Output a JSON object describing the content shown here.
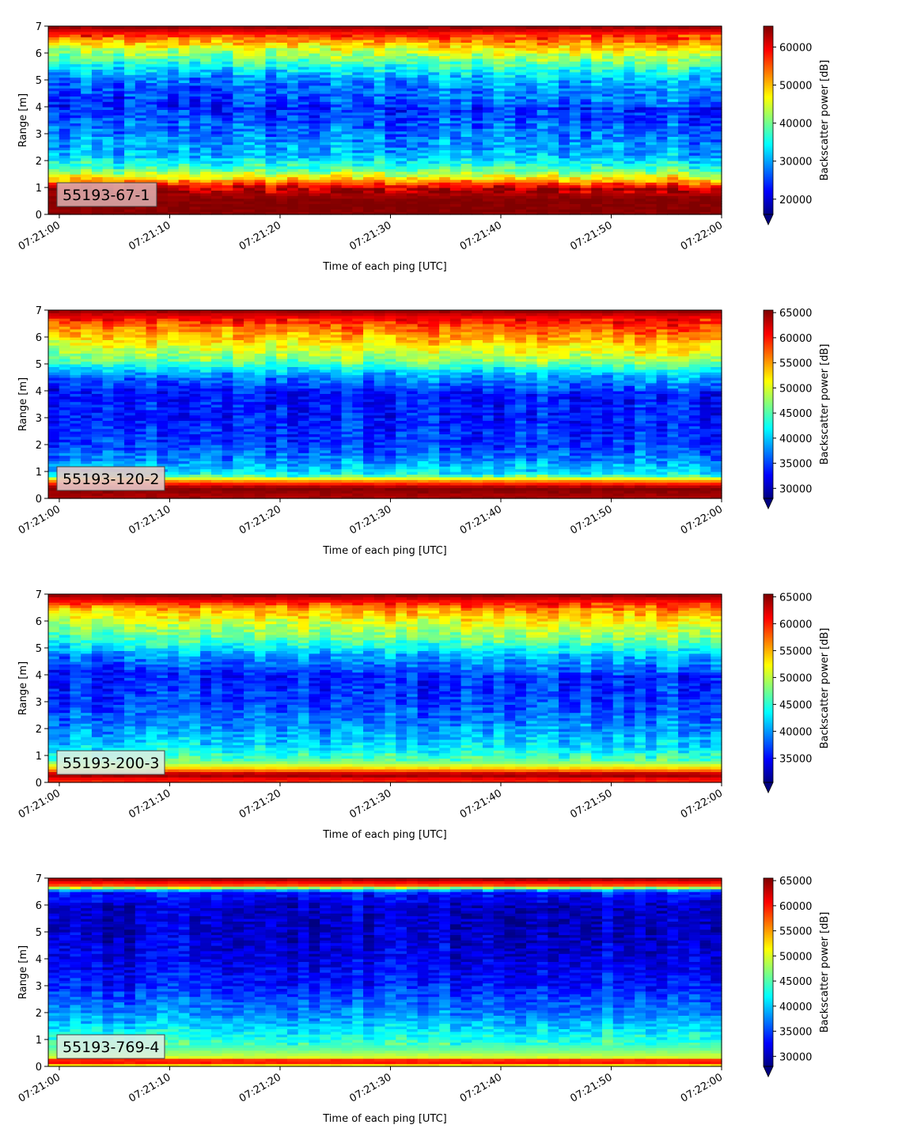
{
  "chart_data": [
    {
      "type": "heatmap",
      "label": "55193-67-1",
      "xlabel": "Time of each ping [UTC]",
      "ylabel": "Range [m]",
      "colorbar_label": "Backscatter power [dB]",
      "colormap": "jet",
      "x_ticks": [
        "07:21:00",
        "07:21:10",
        "07:21:20",
        "07:21:30",
        "07:21:40",
        "07:21:50",
        "07:22:00"
      ],
      "x_range": [
        "07:20:59",
        "07:22:00"
      ],
      "y_ticks": [
        0,
        1,
        2,
        3,
        4,
        5,
        6,
        7
      ],
      "ylim": [
        0,
        7
      ],
      "clim": [
        16000,
        65500
      ],
      "colorbar_ticks": [
        20000,
        30000,
        40000,
        50000,
        60000
      ],
      "profile": [
        {
          "range": 0.1,
          "value": 65000
        },
        {
          "range": 0.5,
          "value": 65500
        },
        {
          "range": 1.0,
          "value": 62000
        },
        {
          "range": 1.3,
          "value": 50000
        },
        {
          "range": 1.7,
          "value": 38000
        },
        {
          "range": 2.2,
          "value": 31000
        },
        {
          "range": 3.0,
          "value": 28000
        },
        {
          "range": 4.0,
          "value": 24000
        },
        {
          "range": 5.0,
          "value": 28000
        },
        {
          "range": 5.6,
          "value": 36000
        },
        {
          "range": 6.1,
          "value": 44000
        },
        {
          "range": 6.5,
          "value": 52000
        },
        {
          "range": 6.8,
          "value": 60000
        },
        {
          "range": 7.0,
          "value": 65000
        }
      ],
      "trend": 6000,
      "noise": 7000
    },
    {
      "type": "heatmap",
      "label": "55193-120-2",
      "xlabel": "Time of each ping [UTC]",
      "ylabel": "Range [m]",
      "colorbar_label": "Backscatter power [dB]",
      "colormap": "jet",
      "x_ticks": [
        "07:21:00",
        "07:21:10",
        "07:21:20",
        "07:21:30",
        "07:21:40",
        "07:21:50",
        "07:22:00"
      ],
      "x_range": [
        "07:20:59",
        "07:22:00"
      ],
      "y_ticks": [
        0,
        1,
        2,
        3,
        4,
        5,
        6,
        7
      ],
      "ylim": [
        0,
        7
      ],
      "clim": [
        28000,
        65500
      ],
      "colorbar_ticks": [
        30000,
        35000,
        40000,
        45000,
        50000,
        55000,
        60000,
        65000
      ],
      "profile": [
        {
          "range": 0.1,
          "value": 64000
        },
        {
          "range": 0.4,
          "value": 65500
        },
        {
          "range": 0.65,
          "value": 56000
        },
        {
          "range": 0.9,
          "value": 42000
        },
        {
          "range": 1.4,
          "value": 38000
        },
        {
          "range": 2.0,
          "value": 35000
        },
        {
          "range": 3.0,
          "value": 33500
        },
        {
          "range": 4.0,
          "value": 33500
        },
        {
          "range": 4.6,
          "value": 38000
        },
        {
          "range": 5.1,
          "value": 46000
        },
        {
          "range": 5.8,
          "value": 52000
        },
        {
          "range": 6.4,
          "value": 57000
        },
        {
          "range": 6.8,
          "value": 62000
        },
        {
          "range": 7.0,
          "value": 65000
        }
      ],
      "trend": 3000,
      "noise": 4500
    },
    {
      "type": "heatmap",
      "label": "55193-200-3",
      "xlabel": "Time of each ping [UTC]",
      "ylabel": "Range [m]",
      "colorbar_label": "Backscatter power [dB]",
      "colormap": "jet",
      "x_ticks": [
        "07:21:00",
        "07:21:10",
        "07:21:20",
        "07:21:30",
        "07:21:40",
        "07:21:50",
        "07:22:00"
      ],
      "x_range": [
        "07:20:59",
        "07:22:00"
      ],
      "y_ticks": [
        0,
        1,
        2,
        3,
        4,
        5,
        6,
        7
      ],
      "ylim": [
        0,
        7
      ],
      "clim": [
        30500,
        65500
      ],
      "colorbar_ticks": [
        35000,
        40000,
        45000,
        50000,
        55000,
        60000,
        65000
      ],
      "profile": [
        {
          "range": 0.1,
          "value": 60000
        },
        {
          "range": 0.3,
          "value": 65500
        },
        {
          "range": 0.5,
          "value": 55000
        },
        {
          "range": 0.8,
          "value": 47000
        },
        {
          "range": 1.3,
          "value": 43000
        },
        {
          "range": 2.0,
          "value": 40000
        },
        {
          "range": 3.0,
          "value": 37000
        },
        {
          "range": 4.0,
          "value": 36000
        },
        {
          "range": 4.7,
          "value": 40000
        },
        {
          "range": 5.3,
          "value": 46000
        },
        {
          "range": 6.0,
          "value": 51000
        },
        {
          "range": 6.5,
          "value": 56000
        },
        {
          "range": 6.8,
          "value": 62000
        },
        {
          "range": 7.0,
          "value": 65000
        }
      ],
      "trend": 2500,
      "noise": 4200
    },
    {
      "type": "heatmap",
      "label": "55193-769-4",
      "xlabel": "Time of each ping [UTC]",
      "ylabel": "Range [m]",
      "colorbar_label": "Backscatter power [dB]",
      "colormap": "jet",
      "x_ticks": [
        "07:21:00",
        "07:21:10",
        "07:21:20",
        "07:21:30",
        "07:21:40",
        "07:21:50",
        "07:22:00"
      ],
      "x_range": [
        "07:20:59",
        "07:22:00"
      ],
      "y_ticks": [
        0,
        1,
        2,
        3,
        4,
        5,
        6,
        7
      ],
      "ylim": [
        0,
        7
      ],
      "clim": [
        28000,
        65500
      ],
      "colorbar_ticks": [
        30000,
        35000,
        40000,
        45000,
        50000,
        55000,
        60000,
        65000
      ],
      "profile": [
        {
          "range": 0.05,
          "value": 52000
        },
        {
          "range": 0.2,
          "value": 64000
        },
        {
          "range": 0.35,
          "value": 50000
        },
        {
          "range": 0.7,
          "value": 45000
        },
        {
          "range": 1.3,
          "value": 42000
        },
        {
          "range": 2.0,
          "value": 38000
        },
        {
          "range": 3.0,
          "value": 34000
        },
        {
          "range": 4.0,
          "value": 32000
        },
        {
          "range": 5.0,
          "value": 31000
        },
        {
          "range": 6.0,
          "value": 31000
        },
        {
          "range": 6.5,
          "value": 34000
        },
        {
          "range": 6.75,
          "value": 58000
        },
        {
          "range": 6.9,
          "value": 62000
        },
        {
          "range": 7.0,
          "value": 65000
        }
      ],
      "trend": 0,
      "noise": 4200
    }
  ]
}
